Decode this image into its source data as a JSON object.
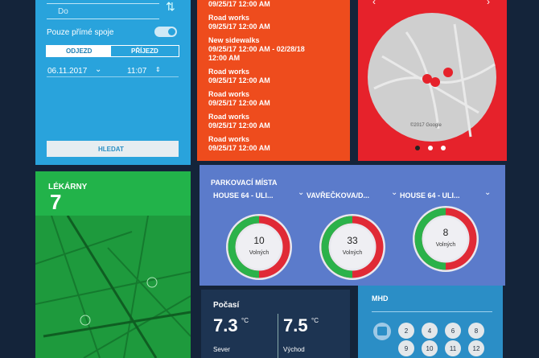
{
  "search": {
    "to_placeholder": "Do",
    "direct_label": "Pouze přímé spoje",
    "tabs": [
      "ODJEZD",
      "PŘÍJEZD"
    ],
    "date": "06.11.2017",
    "time": "11:07",
    "button": "HLEDAT"
  },
  "events": [
    {
      "date": "09/25/17 12:00 AM"
    },
    {
      "title": "Road works",
      "date": "09/25/17 12:00 AM"
    },
    {
      "title": "New sidewalks",
      "date": "09/25/17 12:00 AM - 02/28/18",
      "date_end": "12:00 AM"
    },
    {
      "title": "Road works",
      "date": "09/25/17 12:00 AM"
    },
    {
      "title": "Road works",
      "date": "09/25/17 12:00 AM"
    },
    {
      "title": "Road works",
      "date": "09/25/17 12:00 AM"
    },
    {
      "title": "Road works",
      "date": "09/25/17 12:00 AM"
    }
  ],
  "map": {
    "copyright": "©2017 Google"
  },
  "pharmacies": {
    "title": "LÉKÁRNY",
    "count": 7
  },
  "parking": {
    "title": "PARKOVACÍ MÍSTA",
    "lots": [
      {
        "name": "HOUSE 64 - ULI...",
        "free": 10,
        "label": "Volných"
      },
      {
        "name": "VAVŘEČKOVA/D...",
        "free": 33,
        "label": "Volných"
      },
      {
        "name": "HOUSE 64 - ULI...",
        "free": 8,
        "label": "Volných"
      }
    ]
  },
  "weather": {
    "title": "Počasí",
    "stations": [
      {
        "temp": 7.3,
        "unit": "°C",
        "name": "Sever"
      },
      {
        "temp": 7.5,
        "unit": "°C",
        "name": "Východ"
      }
    ]
  },
  "mhd": {
    "title": "MHD",
    "lines": [
      2,
      4,
      6,
      8,
      9,
      10,
      11,
      12
    ]
  }
}
